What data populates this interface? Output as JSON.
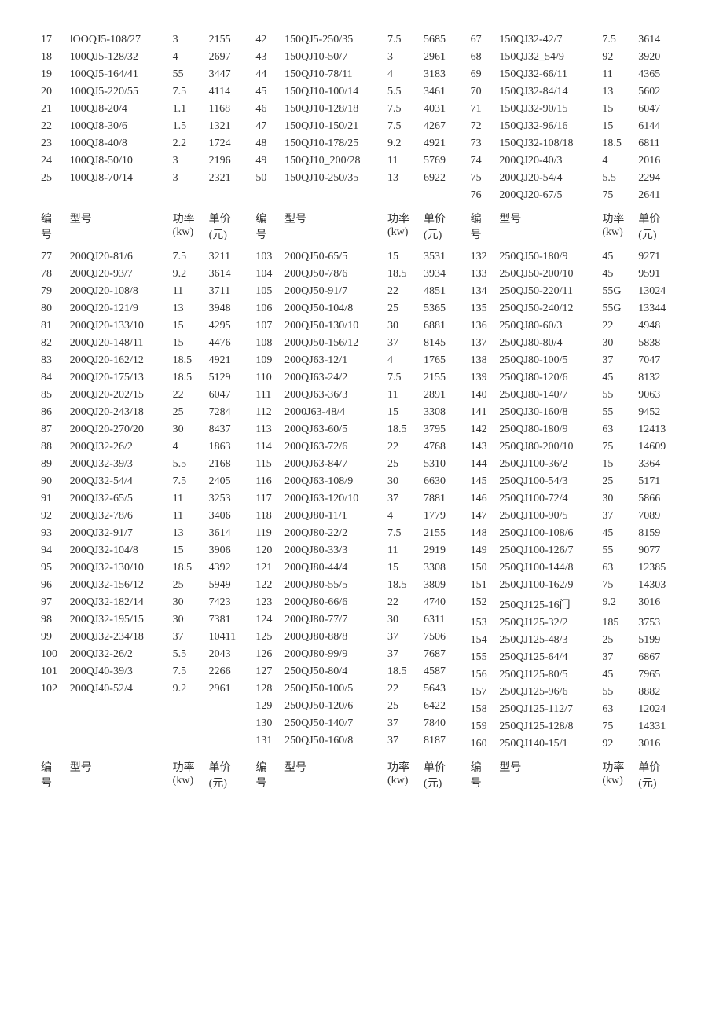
{
  "headers": {
    "no": "编号",
    "model": "型号",
    "power": "功率(kw)",
    "price": "单价(元)"
  },
  "headers2l": {
    "no1": "编",
    "no2": "号",
    "power1": "功率",
    "power2": "(kw)",
    "price1": "单价",
    "price2": "(元)"
  },
  "top": {
    "left": [
      [
        "17",
        "lOOQJ5-108/27",
        "3",
        "2155"
      ],
      [
        "18",
        "100QJ5-128/32",
        "4",
        "2697"
      ],
      [
        "19",
        "100QJ5-164/41",
        "55",
        "3447"
      ],
      [
        "20",
        "100QJ5-220/55",
        "7.5",
        "4114"
      ],
      [
        "21",
        "100QJ8-20/4",
        "1.1",
        "1168"
      ],
      [
        "22",
        "100QJ8-30/6",
        "1.5",
        "1321"
      ],
      [
        "23",
        "100QJ8-40/8",
        "2.2",
        "1724"
      ],
      [
        "24",
        "100QJ8-50/10",
        "3",
        "2196"
      ],
      [
        "25",
        "100QJ8-70/14",
        "3",
        "2321"
      ]
    ],
    "mid": [
      [
        "42",
        "150QJ5-250/35",
        "7.5",
        "5685"
      ],
      [
        "43",
        "150QJ10-50/7",
        "3",
        "2961"
      ],
      [
        "44",
        "150QJ10-78/11",
        "4",
        "3183"
      ],
      [
        "45",
        "150QJ10-100/14",
        "5.5",
        "3461"
      ],
      [
        "46",
        "150QJ10-128/18",
        "7.5",
        "4031"
      ],
      [
        "47",
        "150QJ10-150/21",
        "7.5",
        "4267"
      ],
      [
        "48",
        "150QJ10-178/25",
        "9.2",
        "4921"
      ],
      [
        "49",
        "150QJ10_200/28",
        "11",
        "5769"
      ],
      [
        "50",
        "150QJ10-250/35",
        "13",
        "6922"
      ]
    ],
    "right": [
      [
        "67",
        "150QJ32-42/7",
        "7.5",
        "3614"
      ],
      [
        "68",
        "150QJ32_54/9",
        "92",
        "3920"
      ],
      [
        "69",
        "150QJ32-66/11",
        "11",
        "4365"
      ],
      [
        "70",
        "150QJ32-84/14",
        "13",
        "5602"
      ],
      [
        "71",
        "150QJ32-90/15",
        "15",
        "6047"
      ],
      [
        "72",
        "150QJ32-96/16",
        "15",
        "6144"
      ],
      [
        "73",
        "150QJ32-108/18",
        "18.5",
        "6811"
      ],
      [
        "74",
        "200QJ20-40/3",
        "4",
        "2016"
      ],
      [
        "75",
        "200QJ20-54/4",
        "5.5",
        "2294"
      ],
      [
        "76",
        "200QJ20-67/5",
        "75",
        "2641"
      ]
    ]
  },
  "main": {
    "left": [
      [
        "77",
        "200QJ20-81/6",
        "7.5",
        "3211"
      ],
      [
        "78",
        "200QJ20-93/7",
        "9.2",
        "3614"
      ],
      [
        "79",
        "200QJ20-108/8",
        "11",
        "3711"
      ],
      [
        "80",
        "200QJ20-121/9",
        "13",
        "3948"
      ],
      [
        "81",
        "200QJ20-133/10",
        "15",
        "4295"
      ],
      [
        "82",
        "200QJ20-148/11",
        "15",
        "4476"
      ],
      [
        "83",
        "200QJ20-162/12",
        "18.5",
        "4921"
      ],
      [
        "84",
        "200QJ20-175/13",
        "18.5",
        "5129"
      ],
      [
        "85",
        "200QJ20-202/15",
        "22",
        "6047"
      ],
      [
        "86",
        "200QJ20-243/18",
        "25",
        "7284"
      ],
      [
        "87",
        "200QJ20-270/20",
        "30",
        "8437"
      ],
      [
        "88",
        "200QJ32-26/2",
        "4",
        "1863"
      ],
      [
        "89",
        "200QJ32-39/3",
        "5.5",
        "2168"
      ],
      [
        "90",
        "200QJ32-54/4",
        "7.5",
        "2405"
      ],
      [
        "91",
        "200QJ32-65/5",
        "11",
        "3253"
      ],
      [
        "92",
        "200QJ32-78/6",
        "11",
        "3406"
      ],
      [
        "93",
        "200QJ32-91/7",
        "13",
        "3614"
      ],
      [
        "94",
        "200QJ32-104/8",
        "15",
        "3906"
      ],
      [
        "95",
        "200QJ32-130/10",
        "18.5",
        "4392"
      ],
      [
        "96",
        "200QJ32-156/12",
        "25",
        "5949"
      ],
      [
        "97",
        "200QJ32-182/14",
        "30",
        "7423"
      ],
      [
        "98",
        "200QJ32-195/15",
        "30",
        "7381"
      ],
      [
        "99",
        "200QJ32-234/18",
        "37",
        "10411"
      ],
      [
        "100",
        "200QJ32-26/2",
        "5.5",
        "2043"
      ],
      [
        "101",
        "200QJ40-39/3",
        "7.5",
        "2266"
      ],
      [
        "102",
        "200QJ40-52/4",
        "9.2",
        "2961"
      ]
    ],
    "mid": [
      [
        "103",
        "200QJ50-65/5",
        "15",
        "3531"
      ],
      [
        "104",
        "200QJ50-78/6",
        "18.5",
        "3934"
      ],
      [
        "105",
        "200QJ50-91/7",
        "22",
        "4851"
      ],
      [
        "106",
        "200QJ50-104/8",
        "25",
        "5365"
      ],
      [
        "107",
        "200QJ50-130/10",
        "30",
        "6881"
      ],
      [
        "108",
        "200QJ50-156/12",
        "37",
        "8145"
      ],
      [
        "109",
        "200QJ63-12/1",
        "4",
        "1765"
      ],
      [
        "110",
        "200QJ63-24/2",
        "7.5",
        "2155"
      ],
      [
        "111",
        "200QJ63-36/3",
        "11",
        "2891"
      ],
      [
        "112",
        "2000J63-48/4",
        "15",
        "3308"
      ],
      [
        "113",
        "200QJ63-60/5",
        "18.5",
        "3795"
      ],
      [
        "114",
        "200QJ63-72/6",
        "22",
        "4768"
      ],
      [
        "115",
        "200QJ63-84/7",
        "25",
        "5310"
      ],
      [
        "116",
        "200QJ63-108/9",
        "30",
        "6630"
      ],
      [
        "117",
        "200QJ63-120/10",
        "37",
        "7881"
      ],
      [
        "118",
        "200QJ80-11/1",
        "4",
        "1779"
      ],
      [
        "119",
        "200QJ80-22/2",
        "7.5",
        "2155"
      ],
      [
        "120",
        "200QJ80-33/3",
        "11",
        "2919"
      ],
      [
        "121",
        "200QJ80-44/4",
        "15",
        "3308"
      ],
      [
        "122",
        "200QJ80-55/5",
        "18.5",
        "3809"
      ],
      [
        "123",
        "200QJ80-66/6",
        "22",
        "4740"
      ],
      [
        "124",
        "200QJ80-77/7",
        "30",
        "6311"
      ],
      [
        "125",
        "200QJ80-88/8",
        "37",
        "7506"
      ],
      [
        "126",
        "200QJ80-99/9",
        "37",
        "7687"
      ],
      [
        "127",
        "250QJ50-80/4",
        "18.5",
        "4587"
      ],
      [
        "128",
        "250QJ50-100/5",
        "22",
        "5643"
      ],
      [
        "129",
        "250QJ50-120/6",
        "25",
        "6422"
      ],
      [
        "130",
        "250QJ50-140/7",
        "37",
        "7840"
      ],
      [
        "131",
        "250QJ50-160/8",
        "37",
        "8187"
      ]
    ],
    "right": [
      [
        "132",
        "250QJ50-180/9",
        "45",
        "9271"
      ],
      [
        "133",
        "250QJ50-200/10",
        "45",
        "9591"
      ],
      [
        "134",
        "250QJ50-220/11",
        "55G",
        "13024"
      ],
      [
        "135",
        "250QJ50-240/12",
        "55G",
        "13344"
      ],
      [
        "136",
        "250QJ80-60/3",
        "22",
        "4948"
      ],
      [
        "137",
        "250QJ80-80/4",
        "30",
        "5838"
      ],
      [
        "138",
        "250QJ80-100/5",
        "37",
        "7047"
      ],
      [
        "139",
        "250QJ80-120/6",
        "45",
        "8132"
      ],
      [
        "140",
        "250QJ80-140/7",
        "55",
        "9063"
      ],
      [
        "141",
        "250QJ30-160/8",
        "55",
        "9452"
      ],
      [
        "142",
        "250QJ80-180/9",
        "63",
        "12413"
      ],
      [
        "143",
        "250QJ80-200/10",
        "75",
        "14609"
      ],
      [
        "144",
        "250QJ100-36/2",
        "15",
        "3364"
      ],
      [
        "145",
        "250QJ100-54/3",
        "25",
        "5171"
      ],
      [
        "146",
        "250QJ100-72/4",
        "30",
        "5866"
      ],
      [
        "147",
        "250QJ100-90/5",
        "37",
        "7089"
      ],
      [
        "148",
        "250QJ100-108/6",
        "45",
        "8159"
      ],
      [
        "149",
        "250QJ100-126/7",
        "55",
        "9077"
      ],
      [
        "150",
        "250QJ100-144/8",
        "63",
        "12385"
      ],
      [
        "151",
        "250QJ100-162/9",
        "75",
        "14303"
      ],
      [
        "152",
        "250QJ125-16门",
        "9.2",
        "3016"
      ],
      [
        "153",
        "250QJ125-32/2",
        "185",
        "3753"
      ],
      [
        "154",
        "250QJ125-48/3",
        "25",
        "5199"
      ],
      [
        "155",
        "250QJ125-64/4",
        "37",
        "6867"
      ],
      [
        "156",
        "250QJ125-80/5",
        "45",
        "7965"
      ],
      [
        "157",
        "250QJ125-96/6",
        "55",
        "8882"
      ],
      [
        "158",
        "250QJ125-112/7",
        "63",
        "12024"
      ],
      [
        "159",
        "250QJ125-128/8",
        "75",
        "14331"
      ],
      [
        "160",
        "250QJ140-15/1",
        "92",
        "3016"
      ]
    ]
  }
}
